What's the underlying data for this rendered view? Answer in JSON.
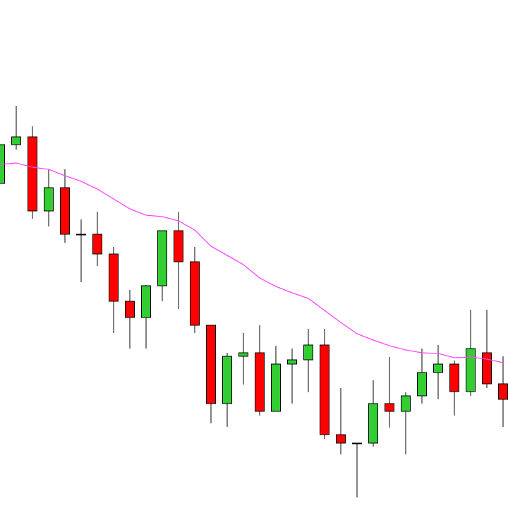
{
  "chart_data": {
    "type": "candlestick",
    "categories": [
      null,
      null,
      null,
      null,
      null,
      null,
      null,
      null,
      null,
      null,
      null,
      null,
      null,
      null,
      null,
      null,
      null,
      null,
      null,
      null,
      null,
      null,
      null,
      null,
      null,
      null,
      null,
      null,
      null,
      null,
      null,
      null
    ],
    "open": [
      460,
      515,
      526,
      421,
      454,
      388,
      388,
      360,
      293,
      270,
      315,
      393,
      349,
      259,
      148,
      215,
      220,
      137,
      204,
      210,
      231,
      104,
      92,
      92,
      148,
      137,
      159,
      192,
      204,
      165,
      220,
      176
    ],
    "high": [
      515,
      570,
      541,
      480,
      480,
      409,
      420,
      370,
      309,
      316,
      393,
      420,
      370,
      259,
      220,
      248,
      259,
      230,
      226,
      254,
      254,
      170,
      92,
      181,
      214,
      164,
      226,
      231,
      209,
      281,
      281,
      215
    ],
    "low": [
      460,
      508,
      410,
      399,
      376,
      320,
      343,
      248,
      226,
      226,
      293,
      282,
      248,
      120,
      115,
      175,
      131,
      137,
      148,
      164,
      98,
      76,
      15,
      87,
      114,
      76,
      148,
      154,
      131,
      159,
      170,
      115
    ],
    "close": [
      515,
      526,
      421,
      454,
      388,
      387,
      360,
      293,
      270,
      315,
      393,
      349,
      259,
      148,
      215,
      220,
      137,
      204,
      210,
      231,
      104,
      92,
      92,
      148,
      137,
      159,
      192,
      204,
      165,
      226,
      176,
      154
    ],
    "up_color": "#33cc33",
    "down_color": "#ff0000",
    "series": [
      {
        "color": "#ff44ff",
        "values": [
          487,
          489,
          483,
          480,
          471,
          463,
          452,
          438,
          424,
          415,
          413,
          407,
          394,
          371,
          358,
          345,
          326,
          314,
          305,
          297,
          280,
          263,
          247,
          238,
          230,
          224,
          220,
          219,
          213,
          214,
          211,
          206
        ]
      }
    ],
    "ylim": [
      0,
      720
    ]
  }
}
